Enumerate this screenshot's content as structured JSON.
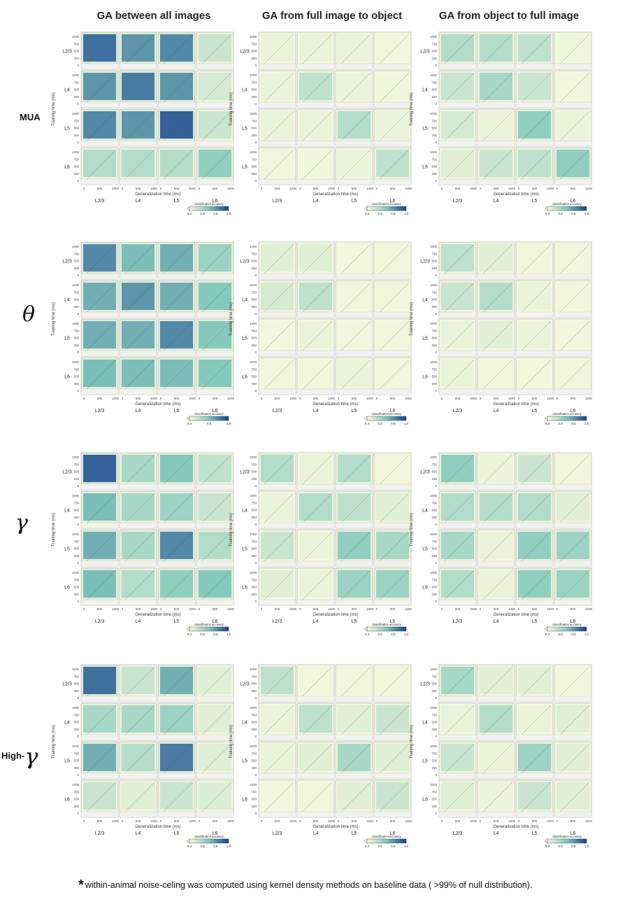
{
  "column_titles": [
    "GA between all images",
    "GA from full image to object",
    "GA from object to full image"
  ],
  "row_labels": [
    "MUA",
    "θ",
    "γ",
    "High-",
    "γ"
  ],
  "layers": [
    "L2/3",
    "L4",
    "L5",
    "L6"
  ],
  "y_ticks": [
    "1000",
    "750",
    "500",
    "250",
    "0"
  ],
  "x_ticks": [
    "0",
    "500",
    "1000"
  ],
  "xlabel": "Generalization time (ms)",
  "ylabel": "Training time (ms)",
  "colorbar": {
    "title": "classification accuracy",
    "ticks_default": [
      "0.4",
      "0.6",
      "0.8",
      "1.0"
    ],
    "ticks_theta": [
      "0.0",
      "0.5",
      "1.0"
    ]
  },
  "footnote_star": "*",
  "footnote": "within-animal noise-celing was computed using kernel density methods on baseline data ( >99% of null distribution).",
  "colors": {
    "low": "#f6f8dc",
    "mid": "#7fc6bb",
    "high": "#173f8e",
    "text": "#111111"
  },
  "panel_levels": {
    "description_free": true,
    "rows": [
      [
        [
          [
            0.85,
            0.7,
            0.75,
            0.2
          ],
          [
            0.7,
            0.8,
            0.7,
            0.15
          ],
          [
            0.75,
            0.7,
            0.9,
            0.2
          ],
          [
            0.3,
            0.3,
            0.3,
            0.45
          ]
        ],
        [
          [
            0.05,
            0.05,
            0.05,
            0.02
          ],
          [
            0.05,
            0.25,
            0.05,
            0.03
          ],
          [
            0.05,
            0.05,
            0.3,
            0.05
          ],
          [
            0.02,
            0.03,
            0.05,
            0.25
          ]
        ],
        [
          [
            0.3,
            0.3,
            0.25,
            0.03
          ],
          [
            0.2,
            0.35,
            0.2,
            0.02
          ],
          [
            0.15,
            0.05,
            0.45,
            0.05
          ],
          [
            0.1,
            0.2,
            0.25,
            0.45
          ]
        ]
      ],
      [
        [
          [
            0.75,
            0.55,
            0.6,
            0.4
          ],
          [
            0.6,
            0.7,
            0.6,
            0.5
          ],
          [
            0.6,
            0.6,
            0.75,
            0.5
          ],
          [
            0.55,
            0.55,
            0.55,
            0.5
          ]
        ],
        [
          [
            0.1,
            0.1,
            0.02,
            0.02
          ],
          [
            0.15,
            0.25,
            0.02,
            0.02
          ],
          [
            0.02,
            0.05,
            0.02,
            0.02
          ],
          [
            0.02,
            0.02,
            0.05,
            0.02
          ]
        ],
        [
          [
            0.25,
            0.1,
            0.02,
            0.02
          ],
          [
            0.2,
            0.3,
            0.05,
            0.02
          ],
          [
            0.05,
            0.1,
            0.05,
            0.02
          ],
          [
            0.05,
            0.02,
            0.02,
            0.02
          ]
        ]
      ],
      [
        [
          [
            0.9,
            0.35,
            0.5,
            0.25
          ],
          [
            0.55,
            0.35,
            0.4,
            0.2
          ],
          [
            0.6,
            0.35,
            0.75,
            0.3
          ],
          [
            0.55,
            0.3,
            0.45,
            0.5
          ]
        ],
        [
          [
            0.3,
            0.05,
            0.3,
            0.02
          ],
          [
            0.05,
            0.3,
            0.25,
            0.1
          ],
          [
            0.2,
            0.05,
            0.45,
            0.35
          ],
          [
            0.1,
            0.05,
            0.4,
            0.4
          ]
        ],
        [
          [
            0.45,
            0.05,
            0.2,
            0.02
          ],
          [
            0.3,
            0.3,
            0.3,
            0.1
          ],
          [
            0.35,
            0.05,
            0.45,
            0.4
          ],
          [
            0.3,
            0.05,
            0.45,
            0.4
          ]
        ]
      ],
      [
        [
          [
            0.85,
            0.2,
            0.6,
            0.1
          ],
          [
            0.35,
            0.35,
            0.4,
            0.1
          ],
          [
            0.6,
            0.3,
            0.8,
            0.1
          ],
          [
            0.2,
            0.1,
            0.2,
            0.12
          ]
        ],
        [
          [
            0.25,
            0.02,
            0.02,
            0.02
          ],
          [
            0.05,
            0.25,
            0.1,
            0.2
          ],
          [
            0.05,
            0.1,
            0.35,
            0.1
          ],
          [
            0.02,
            0.02,
            0.1,
            0.2
          ]
        ],
        [
          [
            0.35,
            0.1,
            0.1,
            0.02
          ],
          [
            0.05,
            0.3,
            0.05,
            0.1
          ],
          [
            0.2,
            0.05,
            0.4,
            0.1
          ],
          [
            0.1,
            0.05,
            0.2,
            0.1
          ]
        ]
      ]
    ]
  }
}
